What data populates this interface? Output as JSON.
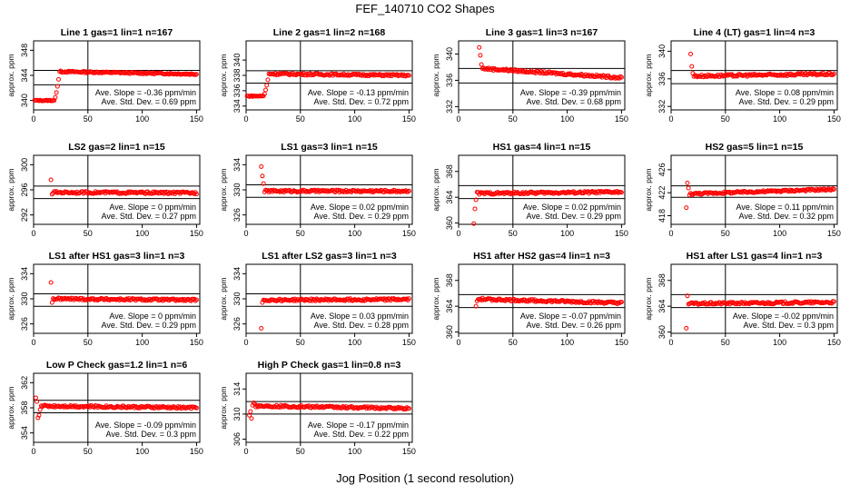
{
  "figure": {
    "title": "FEF_140710  CO2 Shapes",
    "xlabel": "Jog Position (1 second resolution)"
  },
  "chart_data": [
    {
      "type": "scatter",
      "title": "Line 1 gas=1 lin=1 n=167",
      "ylabel": "approx. ppm",
      "xlim": [
        0,
        153
      ],
      "ylim": [
        338.5,
        349.5
      ],
      "yticks": [
        340,
        344,
        348
      ],
      "xticks": [
        0,
        50,
        100,
        150
      ],
      "hlines": [
        344.8,
        342.5
      ],
      "vline": 50,
      "slope_text": "Ave. Slope = -0.36  ppm/min",
      "sd_text": "Ave. Std. Dev. = 0.69  ppm",
      "shape": {
        "start": 340.0,
        "jump_at": 24,
        "peak": 344.6,
        "end": 344.2,
        "level": 344.3
      }
    },
    {
      "type": "scatter",
      "title": "Line 2 gas=1 lin=2 n=168",
      "ylabel": "approx. ppm",
      "xlim": [
        0,
        153
      ],
      "ylim": [
        333.5,
        342.5
      ],
      "yticks": [
        334,
        336,
        338,
        340
      ],
      "xticks": [
        0,
        50,
        100,
        150
      ],
      "hlines": [
        338.6,
        337.0
      ],
      "vline": 50,
      "slope_text": "Ave. Slope = -0.13  ppm/min",
      "sd_text": "Ave. Std. Dev. = 0.72  ppm",
      "shape": {
        "start": 335.3,
        "jump_at": 21,
        "peak": 338.2,
        "end": 338.0,
        "level": 338.1
      }
    },
    {
      "type": "scatter",
      "title": "Line 3 gas=1 lin=3 n=167",
      "ylabel": "approx. ppm",
      "xlim": [
        0,
        153
      ],
      "ylim": [
        331.5,
        342.0
      ],
      "yticks": [
        332,
        336,
        340
      ],
      "xticks": [
        0,
        50,
        100,
        150
      ],
      "hlines": [
        337.8,
        335.6
      ],
      "vline": 50,
      "slope_text": "Ave. Slope = -0.39  ppm/min",
      "sd_text": "Ave. Std. Dev. = 0.68  ppm",
      "initial": [
        [
          19,
          341.0
        ],
        [
          20,
          339.8
        ],
        [
          21,
          338.4
        ]
      ],
      "shape": {
        "start": 337.8,
        "end": 336.4,
        "level": 337.3
      }
    },
    {
      "type": "scatter",
      "title": "Line 4 (LT) gas=1 lin=4 n=3",
      "ylabel": "approx. ppm",
      "xlim": [
        0,
        153
      ],
      "ylim": [
        331.5,
        341.5
      ],
      "yticks": [
        332,
        336,
        340
      ],
      "xticks": [
        0,
        50,
        100,
        150
      ],
      "hlines": [
        337.2,
        335.3
      ],
      "vline": 50,
      "slope_text": "Ave. Slope = 0.08  ppm/min",
      "sd_text": "Ave. Std. Dev. = 0.29  ppm",
      "initial": [
        [
          18,
          339.6
        ],
        [
          19,
          337.8
        ],
        [
          20,
          336.8
        ]
      ],
      "shape": {
        "start": 336.4,
        "end": 336.7,
        "level": 336.4
      }
    },
    {
      "type": "scatter",
      "title": "LS2 gas=2 lin=1 n=15",
      "ylabel": "approx. ppm",
      "xlim": [
        0,
        153
      ],
      "ylim": [
        290.5,
        301.5
      ],
      "yticks": [
        292,
        296,
        300
      ],
      "xticks": [
        0,
        50,
        100,
        150
      ],
      "hlines": [
        296.6,
        294.6
      ],
      "vline": 50,
      "slope_text": "Ave. Slope = 0  ppm/min",
      "sd_text": "Ave. Std. Dev. = 0.27  ppm",
      "initial": [
        [
          16,
          297.6
        ],
        [
          17,
          295.3
        ]
      ],
      "shape": {
        "start": 295.6,
        "end": 295.5,
        "level": 295.6
      }
    },
    {
      "type": "scatter",
      "title": "LS1 gas=3 lin=1 n=15",
      "ylabel": "approx. ppm",
      "xlim": [
        0,
        153
      ],
      "ylim": [
        324.5,
        335.5
      ],
      "yticks": [
        326,
        330,
        334
      ],
      "xticks": [
        0,
        50,
        100,
        150
      ],
      "hlines": [
        330.8,
        328.8
      ],
      "vline": 50,
      "slope_text": "Ave. Slope = 0.02  ppm/min",
      "sd_text": "Ave. Std. Dev. = 0.29  ppm",
      "initial": [
        [
          14,
          333.7
        ],
        [
          15,
          332.2
        ],
        [
          16,
          331.0
        ]
      ],
      "shape": {
        "start": 329.8,
        "end": 329.8,
        "level": 329.8
      }
    },
    {
      "type": "scatter",
      "title": "HS1 gas=4 lin=1 n=15",
      "ylabel": "approx. ppm",
      "xlim": [
        0,
        153
      ],
      "ylim": [
        359.8,
        370.5
      ],
      "yticks": [
        360,
        364,
        368
      ],
      "xticks": [
        0,
        50,
        100,
        150
      ],
      "hlines": [
        365.8,
        363.8
      ],
      "vline": 50,
      "slope_text": "Ave. Slope = 0.02  ppm/min",
      "sd_text": "Ave. Std. Dev. = 0.29  ppm",
      "initial": [
        [
          14,
          359.9
        ],
        [
          15,
          362.2
        ],
        [
          16,
          363.6
        ],
        [
          17,
          364.8
        ]
      ],
      "shape": {
        "start": 364.6,
        "end": 364.8,
        "level": 364.8
      }
    },
    {
      "type": "scatter",
      "title": "HS2 gas=5 lin=1 n=15",
      "ylabel": "approx. ppm",
      "xlim": [
        0,
        153
      ],
      "ylim": [
        416.5,
        428.5
      ],
      "yticks": [
        418,
        422,
        426
      ],
      "xticks": [
        0,
        50,
        100,
        150
      ],
      "hlines": [
        423.2,
        421.2
      ],
      "vline": 50,
      "slope_text": "Ave. Slope = 0.11  ppm/min",
      "sd_text": "Ave. Std. Dev. = 0.32  ppm",
      "initial": [
        [
          14,
          419.4
        ],
        [
          15,
          423.7
        ],
        [
          16,
          422.8
        ],
        [
          17,
          421.6
        ]
      ],
      "shape": {
        "start": 421.8,
        "end": 422.6,
        "level": 422.1
      }
    },
    {
      "type": "scatter",
      "title": "LS1 after HS1 gas=3 lin=1 n=3",
      "ylabel": "approx. ppm",
      "xlim": [
        0,
        153
      ],
      "ylim": [
        324.5,
        335.5
      ],
      "yticks": [
        326,
        330,
        334
      ],
      "xticks": [
        0,
        50,
        100,
        150
      ],
      "hlines": [
        330.8,
        328.8
      ],
      "vline": 50,
      "slope_text": "Ave. Slope = 0  ppm/min",
      "sd_text": "Ave. Std. Dev. = 0.29  ppm",
      "initial": [
        [
          16,
          332.6
        ],
        [
          17,
          329.4
        ]
      ],
      "shape": {
        "start": 330.0,
        "end": 329.8,
        "level": 329.9
      }
    },
    {
      "type": "scatter",
      "title": "LS1 after LS2 gas=3 lin=1 n=3",
      "ylabel": "approx. ppm",
      "xlim": [
        0,
        153
      ],
      "ylim": [
        324.5,
        335.5
      ],
      "yticks": [
        326,
        330,
        334
      ],
      "xticks": [
        0,
        50,
        100,
        150
      ],
      "hlines": [
        330.8,
        328.8
      ],
      "vline": 50,
      "slope_text": "Ave. Slope = 0.03  ppm/min",
      "sd_text": "Ave. Std. Dev. = 0.28  ppm",
      "initial": [
        [
          14,
          325.3
        ],
        [
          15,
          329.4
        ]
      ],
      "shape": {
        "start": 329.8,
        "end": 329.9,
        "level": 329.9
      }
    },
    {
      "type": "scatter",
      "title": "HS1 after HS2 gas=4 lin=1 n=3",
      "ylabel": "approx. ppm",
      "xlim": [
        0,
        153
      ],
      "ylim": [
        359.8,
        370.5
      ],
      "yticks": [
        360,
        364,
        368
      ],
      "xticks": [
        0,
        50,
        100,
        150
      ],
      "hlines": [
        365.8,
        363.8
      ],
      "vline": 50,
      "slope_text": "Ave. Slope = -0.07  ppm/min",
      "sd_text": "Ave. Std. Dev. = 0.26  ppm",
      "initial": [
        [
          16,
          364.0
        ],
        [
          17,
          364.8
        ]
      ],
      "shape": {
        "start": 365.1,
        "end": 364.5,
        "level": 364.8
      }
    },
    {
      "type": "scatter",
      "title": "HS1 after LS1 gas=4 lin=1 n=3",
      "ylabel": "approx. ppm",
      "xlim": [
        0,
        153
      ],
      "ylim": [
        359.8,
        370.5
      ],
      "yticks": [
        360,
        364,
        368
      ],
      "xticks": [
        0,
        50,
        100,
        150
      ],
      "hlines": [
        365.8,
        363.8
      ],
      "vline": 50,
      "slope_text": "Ave. Slope = -0.02  ppm/min",
      "sd_text": "Ave. Std. Dev. = 0.3  ppm",
      "initial": [
        [
          14,
          360.6
        ],
        [
          15,
          365.6
        ]
      ],
      "shape": {
        "start": 364.4,
        "end": 364.6,
        "level": 364.6
      }
    },
    {
      "type": "scatter",
      "title": "Low P Check gas=1.2 lin=1 n=6",
      "ylabel": "approx. ppm",
      "xlim": [
        0,
        153
      ],
      "ylim": [
        352.5,
        363.5
      ],
      "yticks": [
        354,
        358,
        362
      ],
      "xticks": [
        0,
        50,
        100,
        150
      ],
      "hlines": [
        359.2,
        357.2
      ],
      "vline": 50,
      "slope_text": "Ave. Slope = -0.09  ppm/min",
      "sd_text": "Ave. Std. Dev. = 0.3  ppm",
      "initial": [
        [
          2,
          359.6
        ],
        [
          3,
          359.0
        ],
        [
          4,
          356.4
        ],
        [
          5,
          356.8
        ],
        [
          6,
          357.7
        ],
        [
          7,
          358.3
        ]
      ],
      "shape": {
        "start": 358.3,
        "end": 358.0,
        "level": 358.2
      }
    },
    {
      "type": "scatter",
      "title": "High P Check gas=1 lin=0.8 n=3",
      "ylabel": "approx. ppm",
      "xlim": [
        0,
        153
      ],
      "ylim": [
        305.5,
        316.5
      ],
      "yticks": [
        306,
        310,
        314
      ],
      "xticks": [
        0,
        50,
        100,
        150
      ],
      "hlines": [
        312.0,
        310.0
      ],
      "vline": 50,
      "slope_text": "Ave. Slope = -0.17  ppm/min",
      "sd_text": "Ave. Std. Dev. = 0.22  ppm",
      "initial": [
        [
          3,
          309.8
        ],
        [
          4,
          310.4
        ],
        [
          5,
          309.3
        ],
        [
          6,
          311.4
        ],
        [
          7,
          311.8
        ],
        [
          8,
          311.6
        ]
      ],
      "shape": {
        "start": 311.3,
        "end": 310.9,
        "level": 311.1
      }
    }
  ],
  "colors": {
    "points": "#ff0000",
    "axes": "#000000"
  }
}
